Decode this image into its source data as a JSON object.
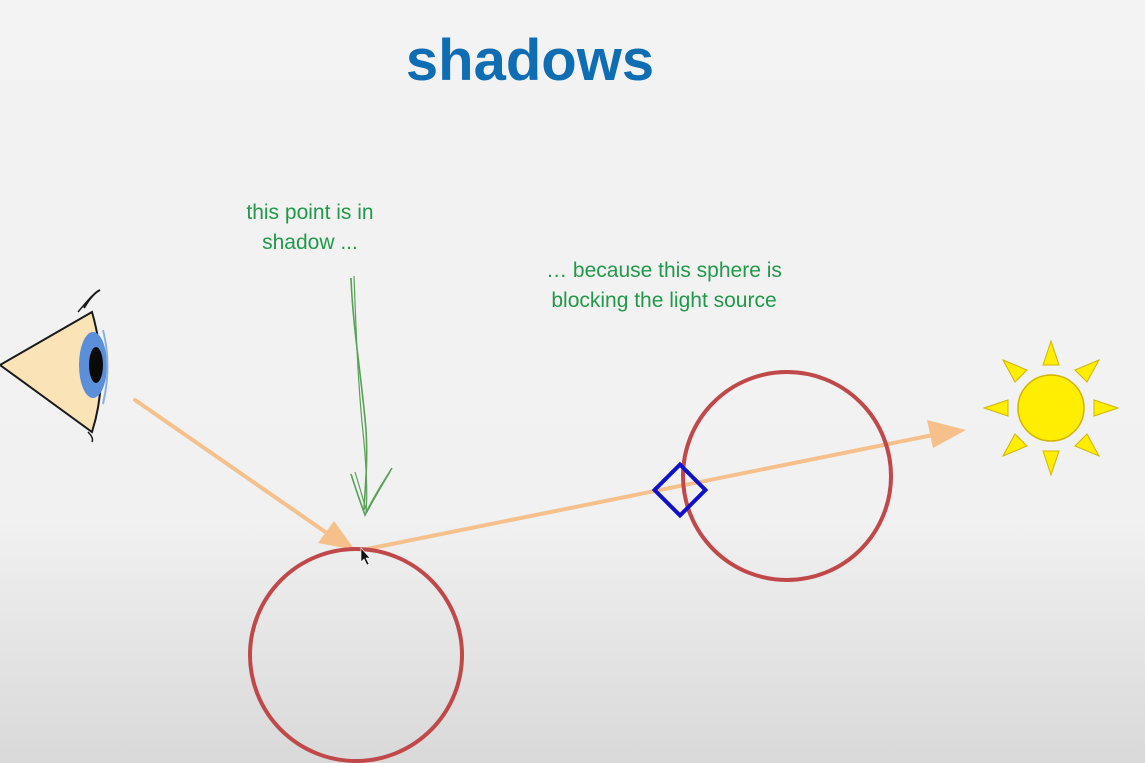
{
  "slide": {
    "title": "shadows"
  },
  "annotations": {
    "shadow_point_line1": "this point is in",
    "shadow_point_line2": "shadow ...",
    "blocking_line1": "… because this sphere is",
    "blocking_line2": "blocking the light source"
  },
  "colors": {
    "title": "#0f6db3",
    "annotation_text": "#22994a",
    "ray": "#f5c08c",
    "sphere_outline": "#c1484a",
    "intersection_marker": "#1010c8",
    "sun_fill": "#ffee00",
    "eye_iris": "#5b8fd9",
    "eye_skin": "#fbe3b8"
  },
  "icons": {
    "eye": "eye-icon",
    "sun": "sun-icon",
    "cursor": "mouse-cursor-icon"
  }
}
